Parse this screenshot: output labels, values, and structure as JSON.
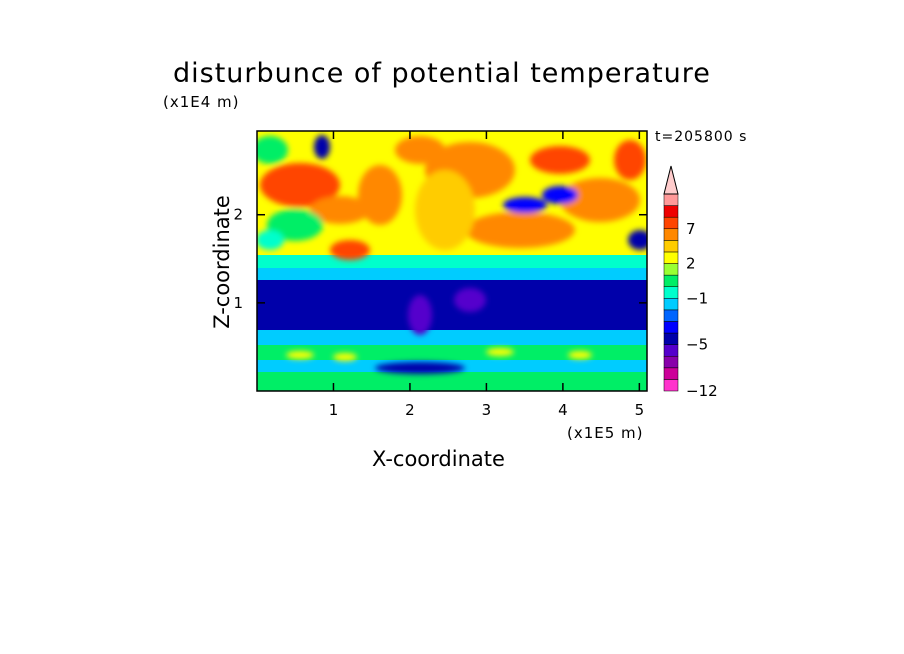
{
  "chart_data": {
    "type": "heatmap",
    "title": "disturbunce of potential temperature",
    "xlabel": "X-coordinate",
    "ylabel": "Z-coordinate",
    "x_unit": "(x1E5 m)",
    "y_unit": "(x1E4 m)",
    "time_label": "t=205800 s",
    "xlim": [
      0,
      5.1
    ],
    "ylim": [
      0,
      2.95
    ],
    "x_ticks": [
      1,
      2,
      3,
      4,
      5
    ],
    "y_ticks": [
      1,
      2
    ],
    "colorbar": {
      "tick_labels": [
        "7",
        "2",
        "−1",
        "−5",
        "−12"
      ],
      "tick_values": [
        7,
        2,
        -1,
        -5,
        -12
      ],
      "levels": [
        -12,
        -10,
        -8,
        -6,
        -5,
        -4,
        -3,
        -2,
        -1,
        0,
        1,
        2,
        3,
        5,
        7,
        9,
        11
      ],
      "colors": [
        "#ff33cc",
        "#cc0099",
        "#8800aa",
        "#5500cc",
        "#0000aa",
        "#0000ff",
        "#0066ff",
        "#00ccff",
        "#00ffcc",
        "#00ee66",
        "#99ff33",
        "#ffff00",
        "#ffcc00",
        "#ff8800",
        "#ff4400",
        "#ee0000",
        "#ff9999",
        "#ffcccc"
      ],
      "extend": "max"
    }
  }
}
